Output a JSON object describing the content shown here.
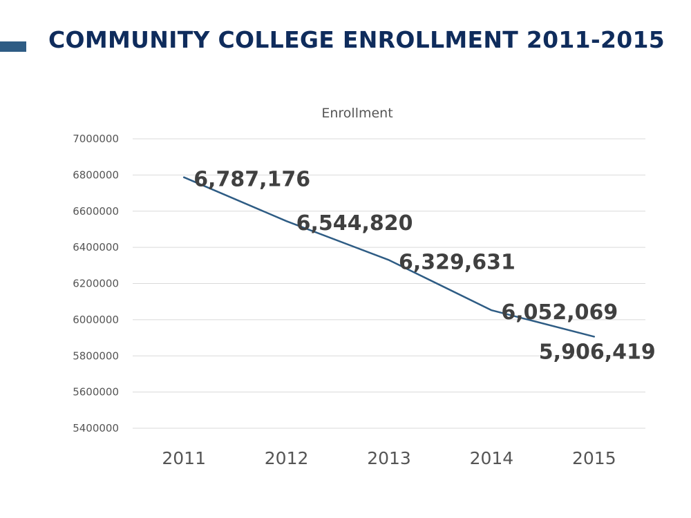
{
  "slide": {
    "title": "COMMUNITY COLLEGE ENROLLMENT 2011-2015",
    "accent_color": "#2e5c84",
    "title_color": "#0f2c5c"
  },
  "chart_data": {
    "type": "line",
    "title": "Enrollment",
    "xlabel": "",
    "ylabel": "",
    "categories": [
      "2011",
      "2012",
      "2013",
      "2014",
      "2015"
    ],
    "series": [
      {
        "values": [
          6787176,
          6544820,
          6329631,
          6052069,
          5906419
        ],
        "data_labels": [
          "6,787,176",
          "6,544,820",
          "6,329,631",
          "6,052,069",
          "5,906,419"
        ],
        "color": "#2e5c84"
      }
    ],
    "ylim": [
      5400000,
      7000000
    ],
    "yticks": [
      "5400000",
      "5600000",
      "5800000",
      "6000000",
      "6200000",
      "6400000",
      "6600000",
      "6800000",
      "7000000"
    ],
    "grid": true,
    "legend": "none"
  }
}
